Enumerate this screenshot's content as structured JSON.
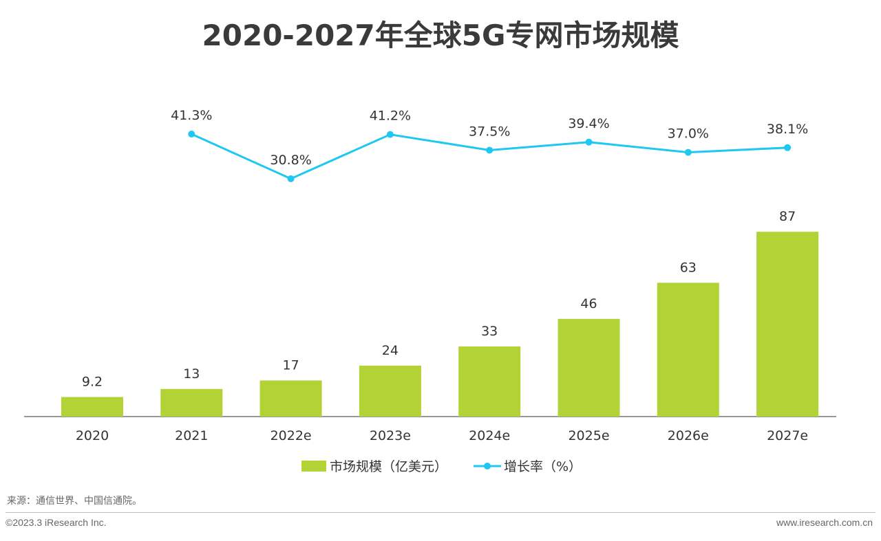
{
  "chart_data": {
    "type": "bar+line",
    "title": "2020-2027年全球5G专网市场规模",
    "categories": [
      "2020",
      "2021",
      "2022e",
      "2023e",
      "2024e",
      "2025e",
      "2026e",
      "2027e"
    ],
    "series": [
      {
        "name": "市场规模（亿美元）",
        "type": "bar",
        "color": "#b2d235",
        "values": [
          9.2,
          13,
          17,
          24,
          33,
          46,
          63,
          87
        ],
        "labels": [
          "9.2",
          "13",
          "17",
          "24",
          "33",
          "46",
          "63",
          "87"
        ]
      },
      {
        "name": "增长率（%）",
        "type": "line",
        "color": "#1ec8f0",
        "values": [
          null,
          41.3,
          30.8,
          41.2,
          37.5,
          39.4,
          37.0,
          38.1
        ],
        "labels": [
          "",
          "41.3%",
          "30.8%",
          "41.2%",
          "37.5%",
          "39.4%",
          "37.0%",
          "38.1%"
        ]
      }
    ],
    "legend": "bottom",
    "grid": false
  },
  "footer": {
    "source": "来源：通信世界、中国信通院。",
    "copyright": "©2023.3 iResearch Inc.",
    "website": "www.iresearch.com.cn"
  }
}
